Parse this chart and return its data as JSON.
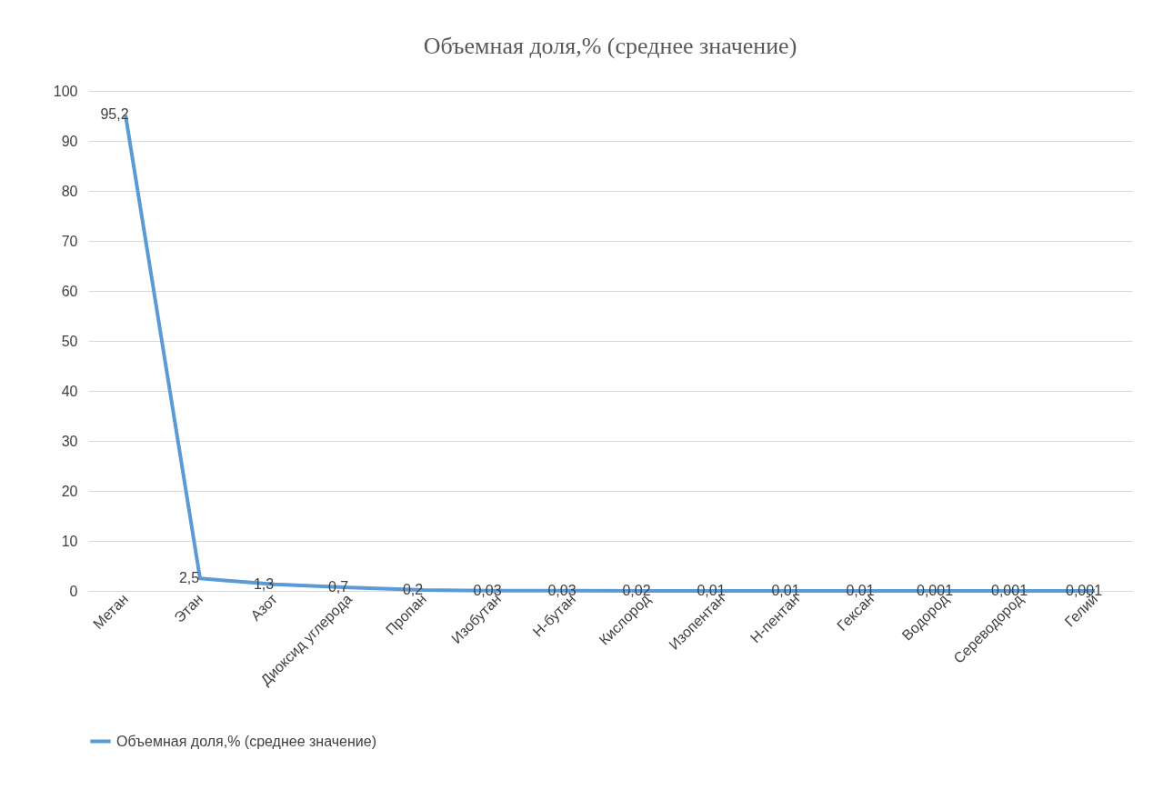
{
  "chart_data": {
    "type": "line",
    "title": "Объемная доля,% (среднее значение)",
    "categories": [
      "Метан",
      "Этан",
      "Азот",
      "Диоксид углерода",
      "Пропан",
      "Изобутан",
      "Н-бутан",
      "Кислород",
      "Изопентан",
      "Н-пентан",
      "Гексан",
      "Водород",
      "Сереводород",
      "Гелий"
    ],
    "series": [
      {
        "name": "Объемная доля,% (среднее значение)",
        "color": "#5b9bd5",
        "values": [
          95.2,
          2.5,
          1.3,
          0.7,
          0.2,
          0.03,
          0.03,
          0.02,
          0.01,
          0.01,
          0.01,
          0.001,
          0.001,
          0.001
        ],
        "value_labels": [
          "95,2",
          "2,5",
          "1,3",
          "0,7",
          "0,2",
          "0,03",
          "0,03",
          "0,02",
          "0,01",
          "0,01",
          "0,01",
          "0,001",
          "0,001",
          "0,001"
        ]
      }
    ],
    "ylim": [
      0,
      100
    ],
    "yticks": [
      0,
      10,
      20,
      30,
      40,
      50,
      60,
      70,
      80,
      90,
      100
    ],
    "grid": "y",
    "legend": "bottom",
    "marker": "none",
    "line_style": "solid"
  }
}
